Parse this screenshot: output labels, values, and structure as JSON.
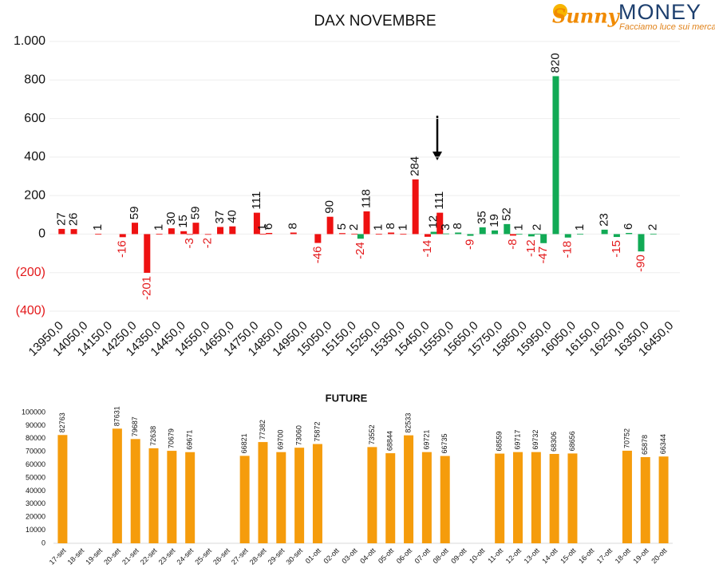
{
  "logo": {
    "brand_1": "Sunny",
    "brand_2": "MONEY",
    "tagline": "Facciamo luce sui mercati"
  },
  "chart_data": [
    {
      "type": "bar",
      "title": "DAX NOVEMBRE",
      "x": [
        13950,
        14000,
        14100,
        14200,
        14250,
        14300,
        14350,
        14400,
        14450,
        14475,
        14500,
        14550,
        14600,
        14650,
        14750,
        14775,
        14800,
        14900,
        15000,
        15050,
        15100,
        15150,
        15175,
        15200,
        15250,
        15300,
        15350,
        15400,
        15450,
        15475,
        15500,
        15525,
        15575,
        15625,
        15675,
        15725,
        15775,
        15800,
        15825,
        15875,
        15900,
        15925,
        15975,
        16025,
        16075,
        16175,
        16225,
        16275,
        16325,
        16375
      ],
      "values": [
        27,
        26,
        1,
        -16,
        59,
        -201,
        1,
        30,
        15,
        -3,
        59,
        -2,
        37,
        40,
        111,
        1,
        6,
        8,
        -46,
        90,
        5,
        2,
        -24,
        118,
        1,
        8,
        1,
        284,
        -14,
        12,
        111,
        3,
        8,
        -9,
        35,
        19,
        52,
        -8,
        1,
        -12,
        2,
        -47,
        820,
        -18,
        1,
        23,
        -15,
        6,
        -90,
        2
      ],
      "colors": [
        "#ee1111",
        "#ee1111",
        "#ee1111",
        "#ee1111",
        "#ee1111",
        "#ee1111",
        "#ee1111",
        "#ee1111",
        "#ee1111",
        "#ee1111",
        "#ee1111",
        "#ee1111",
        "#ee1111",
        "#ee1111",
        "#ee1111",
        "#ee1111",
        "#ee1111",
        "#ee1111",
        "#ee1111",
        "#ee1111",
        "#ee1111",
        "#ee1111",
        "#11aa55",
        "#ee1111",
        "#ee1111",
        "#ee1111",
        "#ee1111",
        "#ee1111",
        "#ee1111",
        "#11aa55",
        "#ee1111",
        "#11aa55",
        "#11aa55",
        "#11aa55",
        "#11aa55",
        "#11aa55",
        "#11aa55",
        "#ee1111",
        "#11aa55",
        "#11aa55",
        "#11aa55",
        "#11aa55",
        "#11aa55",
        "#11aa55",
        "#11aa55",
        "#11aa55",
        "#11aa55",
        "#11aa55",
        "#11aa55",
        "#11aa55"
      ],
      "negative_color": "#e31a1c",
      "xlim": [
        13900,
        16500
      ],
      "xticks": [
        {
          "value": 13950,
          "label": "13950,0"
        },
        {
          "value": 14050,
          "label": "14050,0"
        },
        {
          "value": 14150,
          "label": "14150,0"
        },
        {
          "value": 14250,
          "label": "14250,0"
        },
        {
          "value": 14350,
          "label": "14350,0"
        },
        {
          "value": 14450,
          "label": "14450,0"
        },
        {
          "value": 14550,
          "label": "14550,0"
        },
        {
          "value": 14650,
          "label": "14650,0"
        },
        {
          "value": 14750,
          "label": "14750,0"
        },
        {
          "value": 14850,
          "label": "14850,0"
        },
        {
          "value": 14950,
          "label": "14950,0"
        },
        {
          "value": 15050,
          "label": "15050,0"
        },
        {
          "value": 15150,
          "label": "15150,0"
        },
        {
          "value": 15250,
          "label": "15250,0"
        },
        {
          "value": 15350,
          "label": "15350,0"
        },
        {
          "value": 15450,
          "label": "15450,0"
        },
        {
          "value": 15550,
          "label": "15550,0"
        },
        {
          "value": 15650,
          "label": "15650,0"
        },
        {
          "value": 15750,
          "label": "15750,0"
        },
        {
          "value": 15850,
          "label": "15850,0"
        },
        {
          "value": 15950,
          "label": "15950,0"
        },
        {
          "value": 16050,
          "label": "16050,0"
        },
        {
          "value": 16150,
          "label": "16150,0"
        },
        {
          "value": 16250,
          "label": "16250,0"
        },
        {
          "value": 16350,
          "label": "16350,0"
        },
        {
          "value": 16450,
          "label": "16450,0"
        }
      ],
      "ylim": [
        -400,
        1000
      ],
      "yticks": [
        {
          "value": -400,
          "label": "(400)"
        },
        {
          "value": -200,
          "label": "(200)"
        },
        0,
        200,
        400,
        600,
        800,
        {
          "value": 1000,
          "label": "1.000"
        }
      ],
      "grid": true
    },
    {
      "type": "bar",
      "title": "FUTURE",
      "color": "#f59c0c",
      "categories": [
        "17-set",
        "18-set",
        "19-set",
        "20-set",
        "21-set",
        "22-set",
        "23-set",
        "24-set",
        "25-set",
        "26-set",
        "27-set",
        "28-set",
        "29-set",
        "30-set",
        "01-ott",
        "02-ott",
        "03-ott",
        "04-ott",
        "05-ott",
        "06-ott",
        "07-ott",
        "08-ott",
        "09-ott",
        "10-ott",
        "11-ott",
        "12-ott",
        "13-ott",
        "14-ott",
        "15-ott",
        "16-ott",
        "17-ott",
        "18-ott",
        "19-ott",
        "20-ott"
      ],
      "values": [
        82763,
        null,
        null,
        87631,
        79687,
        72638,
        70679,
        69671,
        null,
        null,
        66821,
        77382,
        69700,
        73060,
        75872,
        null,
        null,
        73552,
        68844,
        82533,
        69721,
        66735,
        null,
        null,
        68559,
        69717,
        69732,
        68306,
        68656,
        null,
        null,
        70752,
        65878,
        66344
      ],
      "ylim": [
        0,
        100000
      ],
      "yticks": [
        0,
        10000,
        20000,
        30000,
        40000,
        50000,
        60000,
        70000,
        80000,
        90000,
        100000
      ],
      "grid": false
    }
  ]
}
